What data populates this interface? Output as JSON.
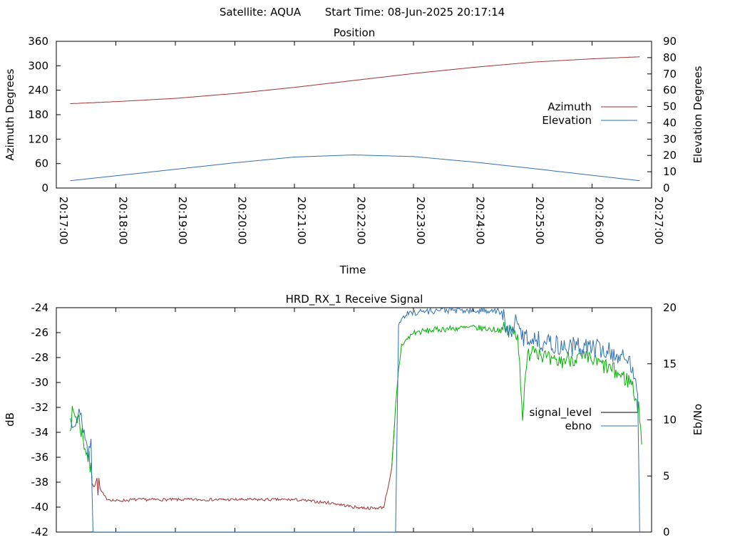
{
  "header": {
    "satellite": "Satellite: AQUA",
    "start_time": "Start Time: 08-Jun-2025 20:17:14"
  },
  "colors": {
    "azimuth": "#a03030",
    "elevation": "#3070b0",
    "signal_level": "#a03030",
    "signal_level_legend": "#000000",
    "ebno": "#3070b0",
    "ebno_green": "#00b000",
    "axes": "#000000"
  },
  "chart_data": [
    {
      "type": "line",
      "title": "Position",
      "xlabel": "Time",
      "ylabel": "Azimuth Degrees",
      "y2label": "Elevation Degrees",
      "xlim": [
        "20:17:00",
        "20:27:00"
      ],
      "ylim": [
        0,
        360
      ],
      "y2lim": [
        0,
        90
      ],
      "xticks": [
        "20:17:00",
        "20:18:00",
        "20:19:00",
        "20:20:00",
        "20:21:00",
        "20:22:00",
        "20:23:00",
        "20:24:00",
        "20:25:00",
        "20:26:00",
        "20:27:00"
      ],
      "yticks": [
        "0",
        "60",
        "120",
        "180",
        "240",
        "300",
        "360"
      ],
      "y2ticks": [
        "0",
        "10",
        "20",
        "30",
        "40",
        "50",
        "60",
        "70",
        "80",
        "90"
      ],
      "legend_position": "right",
      "series": [
        {
          "name": "Azimuth",
          "axis": "y",
          "x": [
            "20:17:14",
            "20:18:00",
            "20:19:00",
            "20:20:00",
            "20:21:00",
            "20:22:00",
            "20:23:00",
            "20:24:00",
            "20:25:00",
            "20:26:00",
            "20:26:48"
          ],
          "values": [
            207,
            212,
            220,
            232,
            247,
            264,
            281,
            296,
            309,
            317,
            322
          ]
        },
        {
          "name": "Elevation",
          "axis": "y2",
          "x": [
            "20:17:14",
            "20:18:00",
            "20:19:00",
            "20:20:00",
            "20:21:00",
            "20:22:00",
            "20:23:00",
            "20:24:00",
            "20:25:00",
            "20:26:00",
            "20:26:48"
          ],
          "values": [
            4.5,
            7.5,
            11.5,
            15.5,
            19,
            20.3,
            19.3,
            16,
            12,
            7.8,
            4.5
          ]
        }
      ]
    },
    {
      "type": "line",
      "title": "HRD_RX_1 Receive Signal",
      "xlabel": "",
      "ylabel": "dB",
      "y2label": "Eb/No",
      "xlim": [
        "20:17:00",
        "20:27:00"
      ],
      "ylim": [
        -42,
        -24
      ],
      "y2lim": [
        0,
        20
      ],
      "yticks": [
        "-42",
        "-40",
        "-38",
        "-36",
        "-34",
        "-32",
        "-30",
        "-28",
        "-26",
        "-24"
      ],
      "y2ticks": [
        "0",
        "5",
        "10",
        "15",
        "20"
      ],
      "legend_position": "right",
      "series": [
        {
          "name": "signal_level",
          "axis": "y",
          "x": [
            "20:17:14",
            "20:17:18",
            "20:17:23",
            "20:17:27",
            "20:17:32",
            "20:17:36",
            "20:17:40",
            "20:17:45",
            "20:17:50",
            "20:18:00",
            "20:18:20",
            "20:19:00",
            "20:20:00",
            "20:21:00",
            "20:21:40",
            "20:22:00",
            "20:22:20",
            "20:22:30",
            "20:22:38",
            "20:22:42",
            "20:22:45",
            "20:22:48",
            "20:23:00",
            "20:23:30",
            "20:24:00",
            "20:24:30",
            "20:24:45",
            "20:24:50",
            "20:24:55",
            "20:25:00",
            "20:25:20",
            "20:25:40",
            "20:26:00",
            "20:26:20",
            "20:26:40",
            "20:26:48",
            "20:26:50"
          ],
          "values": [
            -33,
            -32.5,
            -33,
            -34.5,
            -36,
            -37.5,
            -38,
            -38.7,
            -39.3,
            -39.5,
            -39.4,
            -39.4,
            -39.4,
            -39.4,
            -39.7,
            -40,
            -40.1,
            -40,
            -37,
            -32,
            -29,
            -27,
            -26,
            -25.7,
            -25.6,
            -25.8,
            -26,
            -32.5,
            -28,
            -27,
            -28.5,
            -28,
            -28.2,
            -29,
            -30,
            -32.5,
            -35
          ]
        },
        {
          "name": "ebno",
          "axis": "y2",
          "x": [
            "20:17:14",
            "20:17:20",
            "20:17:26",
            "20:17:32",
            "20:17:35",
            "20:17:37",
            "20:22:42",
            "20:22:45",
            "20:22:50",
            "20:23:00",
            "20:23:30",
            "20:24:00",
            "20:24:20",
            "20:24:30",
            "20:24:35",
            "20:24:42",
            "20:24:50",
            "20:25:10",
            "20:25:30",
            "20:26:00",
            "20:26:20",
            "20:26:40",
            "20:26:46",
            "20:26:48"
          ],
          "values": [
            10,
            10.5,
            10,
            7,
            8,
            0,
            0,
            18.5,
            19.3,
            19.6,
            19.8,
            19.7,
            19.8,
            19.5,
            17.5,
            18.7,
            17.5,
            17,
            16.5,
            16.5,
            16,
            15,
            13,
            0
          ]
        }
      ]
    }
  ]
}
